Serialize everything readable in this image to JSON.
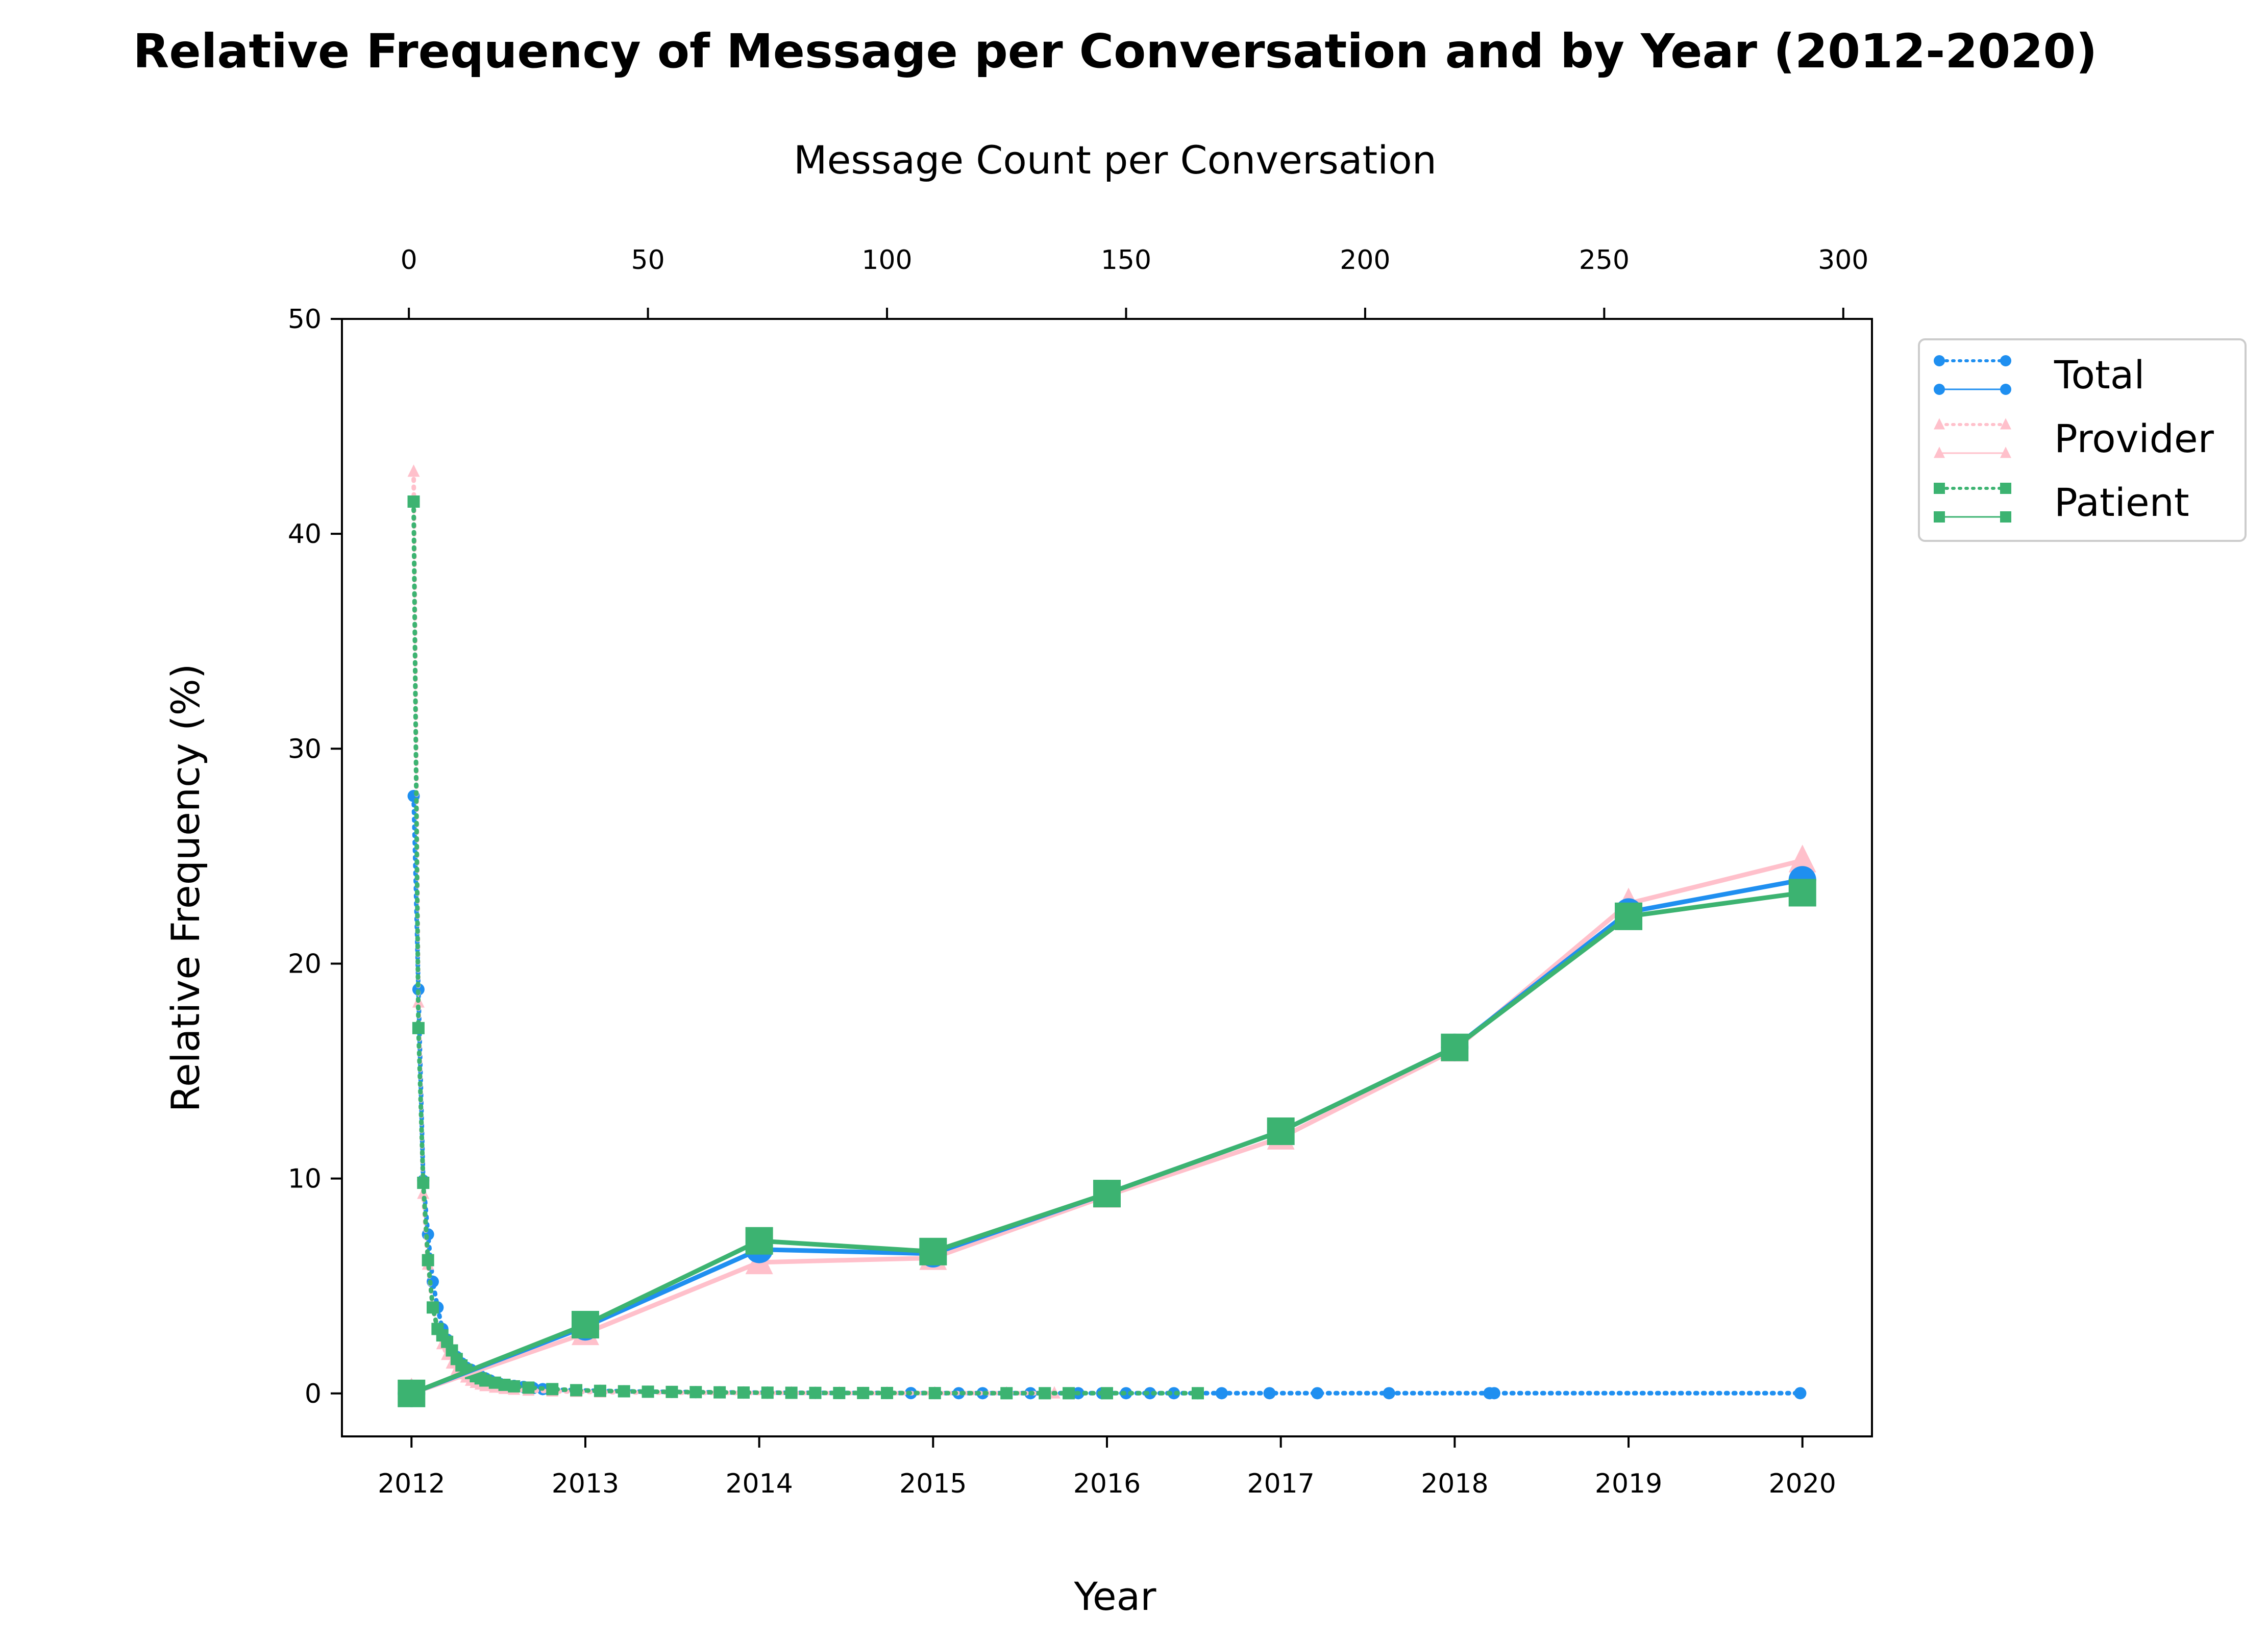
{
  "chart_data": {
    "type": "line",
    "title": "Relative Frequency of Message per Conversation and by Year (2012-2020)",
    "xlabel": "Year",
    "ylabel": "Relative Frequency (%)",
    "top_xlabel": "Message Count per Conversation",
    "ylim": [
      -2,
      50
    ],
    "xlim_year": [
      2011.6,
      2020.4
    ],
    "xlim_count": [
      -14,
      306
    ],
    "yticks": [
      0,
      10,
      20,
      30,
      40,
      50
    ],
    "xticks_year": [
      2012,
      2013,
      2014,
      2015,
      2016,
      2017,
      2018,
      2019,
      2020
    ],
    "xticks_count": [
      0,
      50,
      100,
      150,
      200,
      250,
      300
    ],
    "grid": false,
    "legend_position": "outside-right",
    "legend": [
      "Total",
      "Provider",
      "Patient"
    ],
    "colors": {
      "total": "#1f8ff0",
      "provider": "#ffc0cb",
      "patient": "#3cb371"
    },
    "by_year": {
      "x": [
        2012,
        2013,
        2014,
        2015,
        2016,
        2017,
        2018,
        2019,
        2020
      ],
      "series": [
        {
          "name": "Provider",
          "values": [
            0.0,
            2.8,
            6.1,
            6.3,
            9.2,
            11.9,
            16.0,
            22.8,
            24.8
          ]
        },
        {
          "name": "Total",
          "values": [
            0.0,
            3.1,
            6.7,
            6.5,
            9.3,
            12.2,
            16.1,
            22.4,
            23.9
          ]
        },
        {
          "name": "Patient",
          "values": [
            0.0,
            3.2,
            7.1,
            6.6,
            9.3,
            12.2,
            16.1,
            22.2,
            23.3
          ]
        }
      ]
    },
    "by_count": {
      "series": [
        {
          "name": "Total",
          "x": [
            1,
            2,
            3,
            4,
            5,
            6,
            7,
            8,
            9,
            10,
            11,
            12,
            13,
            14,
            15,
            16,
            17,
            18,
            19,
            20,
            22,
            24,
            26,
            28,
            30,
            35,
            40,
            45,
            50,
            55,
            60,
            65,
            70,
            75,
            80,
            85,
            90,
            95,
            100,
            105,
            110,
            115,
            120,
            130,
            140,
            145,
            150,
            155,
            160,
            165,
            170,
            180,
            190,
            205,
            226,
            227,
            291
          ],
          "values": [
            27.8,
            18.8,
            9.9,
            7.4,
            5.2,
            4.0,
            3.0,
            2.5,
            2.0,
            1.7,
            1.4,
            1.2,
            1.1,
            0.9,
            0.8,
            0.7,
            0.6,
            0.5,
            0.45,
            0.4,
            0.35,
            0.3,
            0.25,
            0.2,
            0.18,
            0.15,
            0.12,
            0.1,
            0.08,
            0.07,
            0.06,
            0.05,
            0.04,
            0.035,
            0.03,
            0.025,
            0.02,
            0.02,
            0.02,
            0.015,
            0.015,
            0.01,
            0.01,
            0.01,
            0.01,
            0.01,
            0.01,
            0.01,
            0.01,
            0.01,
            0.01,
            0.01,
            0.01,
            0.01,
            0.01,
            0.01,
            0.01
          ]
        },
        {
          "name": "Provider",
          "x": [
            1,
            2,
            3,
            4,
            5,
            6,
            7,
            8,
            9,
            10,
            11,
            12,
            13,
            14,
            15,
            16,
            18,
            20,
            22,
            25,
            30,
            35,
            40,
            50,
            60,
            70,
            80,
            90,
            100,
            110,
            125,
            135
          ],
          "values": [
            42.9,
            18.2,
            9.3,
            6.0,
            4.0,
            3.0,
            2.3,
            1.8,
            1.4,
            1.1,
            0.9,
            0.75,
            0.6,
            0.5,
            0.42,
            0.35,
            0.28,
            0.22,
            0.18,
            0.14,
            0.1,
            0.08,
            0.06,
            0.04,
            0.03,
            0.02,
            0.02,
            0.015,
            0.01,
            0.01,
            0.01,
            0.01
          ]
        },
        {
          "name": "Patient",
          "x": [
            1,
            2,
            3,
            4,
            5,
            6,
            7,
            8,
            9,
            10,
            11,
            12,
            13,
            14,
            15,
            16,
            18,
            20,
            22,
            25,
            30,
            35,
            40,
            45,
            50,
            55,
            60,
            65,
            70,
            75,
            80,
            85,
            90,
            95,
            100,
            110,
            125,
            133,
            138,
            146,
            165
          ],
          "values": [
            41.5,
            17.0,
            9.8,
            6.2,
            4.0,
            3.0,
            2.7,
            2.4,
            2.0,
            1.6,
            1.3,
            1.1,
            0.95,
            0.8,
            0.7,
            0.6,
            0.5,
            0.4,
            0.33,
            0.27,
            0.2,
            0.15,
            0.12,
            0.1,
            0.08,
            0.07,
            0.06,
            0.05,
            0.04,
            0.035,
            0.03,
            0.025,
            0.02,
            0.02,
            0.02,
            0.015,
            0.01,
            0.01,
            0.01,
            0.01,
            0.01
          ]
        }
      ]
    }
  }
}
